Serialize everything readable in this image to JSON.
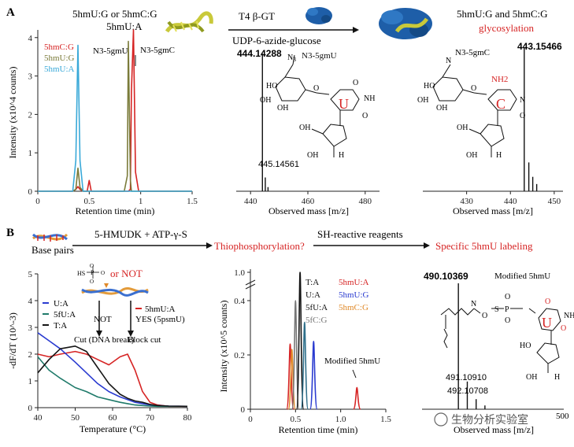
{
  "panel_a": {
    "label": "A",
    "scheme": {
      "left_line1": "5hmU:G  or  5hmC:G",
      "left_line2": "5hmU:A",
      "enzyme": "T4 β-GT",
      "reagent": "UDP-6-azide-glucose",
      "right_line1": "5hmU:G and 5hmC:G",
      "right_line2": "glycosylation"
    },
    "chromatogram": {
      "legend": [
        "5hmC:G",
        "5hmU:G",
        "5hmU:A"
      ],
      "peak_label_1": "N3-5gmU",
      "peak_label_2": "N3-5gmC"
    },
    "ms_left": {
      "main_peak": "444.14288",
      "minor_peak": "445.14561",
      "structure_label": "N3-5gmU",
      "base_letter": "U"
    },
    "ms_right": {
      "main_peak": "443.15466",
      "structure_label": "N3-5gmC",
      "base_letter": "C",
      "nh2": "NH2"
    }
  },
  "panel_b": {
    "label": "B",
    "scheme": {
      "base_pairs": "Base pairs",
      "reagent1": "5-HMUDK + ATP-γ-S",
      "step1": "Thiophosphorylation?",
      "reagent2": "SH-reactive reagents",
      "step2": "Specific 5hmU labeling"
    },
    "melt": {
      "or_not": "or NOT",
      "not": "NOT",
      "yes": "YES (5psmU)",
      "cut": "Cut (DNA break)",
      "block": "Block cut",
      "legend": [
        "U:A",
        "5fU:A",
        "T:A",
        "5hmU:A"
      ]
    },
    "chrom2": {
      "legend_left": [
        "T:A",
        "U:A",
        "5fU:A",
        "5fC:G"
      ],
      "legend_right": [
        "5hmU:A",
        "5hmU:G",
        "5hmC:G"
      ],
      "modified_label": "Modified 5hmU"
    },
    "ms3": {
      "main_peak": "490.10369",
      "label": "Modified 5hmU",
      "peak2": "491.10910",
      "peak3": "492.10708",
      "base_letter": "U"
    },
    "watermark": "生物分析实验室"
  },
  "colors": {
    "red": "#d62424",
    "olive": "#7b7b3a",
    "cyan": "#3aa9d8",
    "blue": "#2a3bd0",
    "teal": "#1f7a6a",
    "black": "#151515",
    "orange": "#e08a2a",
    "gray": "#777777"
  },
  "chart_data": [
    {
      "type": "line",
      "xlabel": "Retention time (min)",
      "ylabel": "Intensity (x10^4 counts)",
      "xlim": [
        0,
        1.5
      ],
      "ylim": [
        0,
        4.2
      ],
      "xticks": [
        0,
        0.5,
        1.0,
        1.5
      ],
      "yticks": [
        0,
        1,
        2,
        3,
        4
      ],
      "x": [
        0,
        0.34,
        0.37,
        0.39,
        0.41,
        0.44,
        0.48,
        0.5,
        0.52,
        0.84,
        0.87,
        0.88,
        0.9,
        0.91,
        0.93,
        0.95,
        0.98,
        1.5
      ],
      "series": [
        {
          "name": "5hmC:G",
          "values": [
            0,
            0,
            0.05,
            0.12,
            0.05,
            0,
            0,
            0.28,
            0,
            0,
            0,
            0,
            0.05,
            2.6,
            4.2,
            0.5,
            0,
            0
          ]
        },
        {
          "name": "5hmU:G",
          "values": [
            0,
            0,
            0.05,
            0.6,
            0.1,
            0,
            0,
            0,
            0,
            0,
            0.4,
            3.9,
            0.3,
            0,
            0,
            0,
            0,
            0
          ]
        },
        {
          "name": "5hmU:A",
          "values": [
            0,
            0,
            0.8,
            3.8,
            0.8,
            0,
            0,
            0,
            0,
            0,
            0,
            0,
            0,
            0,
            0,
            0,
            0,
            0
          ]
        }
      ]
    },
    {
      "type": "bar",
      "xlabel": "Observed mass [m/z]",
      "xlim": [
        435,
        485
      ],
      "xticks": [
        440,
        460,
        480
      ],
      "peaks": [
        {
          "x": 444.14288,
          "y": 1.0
        },
        {
          "x": 445.14561,
          "y": 0.1
        },
        {
          "x": 446.1,
          "y": 0.03
        }
      ]
    },
    {
      "type": "bar",
      "xlabel": "Observed mass [m/z]",
      "xlim": [
        420,
        452
      ],
      "xticks": [
        430,
        440,
        450
      ],
      "peaks": [
        {
          "x": 443.15466,
          "y": 1.0
        },
        {
          "x": 444.2,
          "y": 0.2
        },
        {
          "x": 445.1,
          "y": 0.1
        },
        {
          "x": 446.0,
          "y": 0.05
        }
      ]
    },
    {
      "type": "line",
      "xlabel": "Temperature (°C)",
      "ylabel": "-dF/dT (10^-3)",
      "xlim": [
        40,
        80
      ],
      "ylim": [
        0,
        5
      ],
      "xticks": [
        40,
        50,
        60,
        70,
        80
      ],
      "yticks": [
        0,
        1,
        2,
        3,
        4,
        5
      ],
      "x": [
        40,
        43,
        46,
        50,
        53,
        56,
        59,
        62,
        64,
        66,
        68,
        70,
        72,
        75,
        80
      ],
      "series": [
        {
          "name": "5hmU:A",
          "values": [
            2.0,
            1.9,
            2.0,
            2.1,
            2.0,
            1.8,
            1.6,
            1.9,
            2.0,
            1.4,
            0.6,
            0.2,
            0.1,
            0.05,
            0.05
          ]
        },
        {
          "name": "U:A",
          "values": [
            2.8,
            2.5,
            2.2,
            1.7,
            1.3,
            0.9,
            0.6,
            0.4,
            0.3,
            0.2,
            0.15,
            0.1,
            0.08,
            0.06,
            0.05
          ]
        },
        {
          "name": "5fU:A",
          "values": [
            1.9,
            1.4,
            1.1,
            0.75,
            0.6,
            0.4,
            0.3,
            0.2,
            0.15,
            0.1,
            0.08,
            0.06,
            0.05,
            0.05,
            0.05
          ]
        },
        {
          "name": "T:A",
          "values": [
            1.3,
            1.8,
            2.2,
            2.3,
            2.1,
            1.5,
            0.9,
            0.5,
            0.35,
            0.25,
            0.2,
            0.12,
            0.08,
            0.06,
            0.05
          ]
        }
      ]
    },
    {
      "type": "line",
      "xlabel": "Retention time (min)",
      "ylabel": "Intensity (x10^5 counts)",
      "xlim": [
        0,
        1.5
      ],
      "xticks": [
        0,
        0.5,
        1.0,
        1.5
      ],
      "yticks": [
        0,
        0.2,
        0.4,
        1.0
      ],
      "peaks": [
        {
          "series": "5hmU:A",
          "x": 0.44,
          "y": 0.24
        },
        {
          "series": "5hmC:G",
          "x": 0.46,
          "y": 0.22
        },
        {
          "series": "5fC:G",
          "x": 0.5,
          "y": 0.4
        },
        {
          "series": "T:A",
          "x": 0.55,
          "y": 1.0
        },
        {
          "series": "5fU:A",
          "x": 0.6,
          "y": 0.32
        },
        {
          "series": "5hmU:G",
          "x": 0.7,
          "y": 0.25
        },
        {
          "series": "5hmU:A",
          "x": 1.18,
          "y": 0.08
        }
      ]
    },
    {
      "type": "bar",
      "xlabel": "Observed mass [m/z]",
      "xticks": [
        500
      ],
      "peaks": [
        {
          "x": 490.10369,
          "y": 1.0
        },
        {
          "x": 491.1091,
          "y": 0.22
        },
        {
          "x": 492.10708,
          "y": 0.08
        },
        {
          "x": 493.1,
          "y": 0.03
        }
      ]
    }
  ]
}
